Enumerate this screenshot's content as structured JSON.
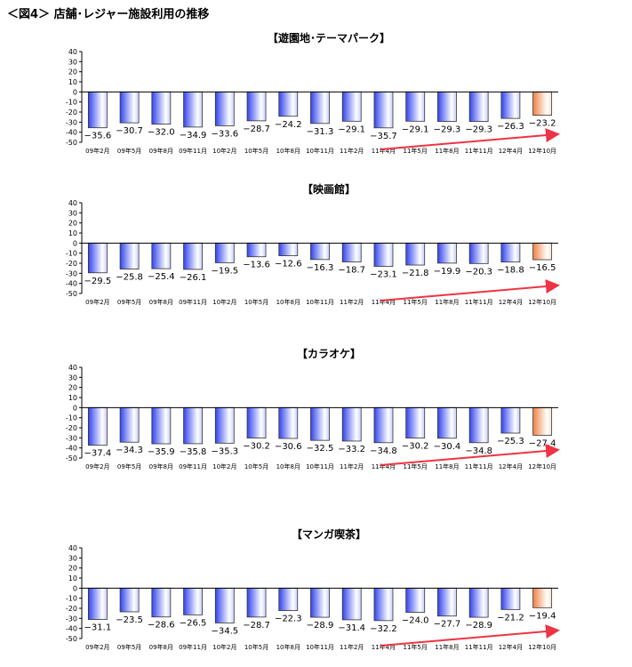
{
  "figure_title": "＜図4＞ 店舗･レジャー施設利用の推移",
  "colors": {
    "bar": "#3344ee",
    "highlight": "#f08040",
    "arrow": "#ee3344"
  },
  "chart_data": [
    {
      "type": "bar",
      "title": "【遊園地･テーマパーク】",
      "ylim": [
        -50,
        40
      ],
      "yticks": [
        40,
        30,
        20,
        10,
        0,
        -10,
        -20,
        -30,
        -40,
        -50
      ],
      "categories": [
        "09年2月",
        "09年5月",
        "09年8月",
        "09年11月",
        "10年2月",
        "10年5月",
        "10年8月",
        "10年11月",
        "11年2月",
        "11年4月",
        "11年5月",
        "11年8月",
        "11年11月",
        "12年4月",
        "12年10月"
      ],
      "values": [
        -35.6,
        -30.7,
        -32.0,
        -34.9,
        -33.6,
        -28.7,
        -24.2,
        -31.3,
        -29.1,
        -35.7,
        -29.1,
        -29.3,
        -29.3,
        -26.3,
        -23.2
      ]
    },
    {
      "type": "bar",
      "title": "【映画館】",
      "ylim": [
        -50,
        40
      ],
      "yticks": [
        40,
        30,
        20,
        10,
        0,
        -10,
        -20,
        -30,
        -40,
        -50
      ],
      "categories": [
        "09年2月",
        "09年5月",
        "09年8月",
        "09年11月",
        "10年2月",
        "10年5月",
        "10年8月",
        "10年11月",
        "11年2月",
        "11年4月",
        "11年5月",
        "11年8月",
        "11年11月",
        "12年4月",
        "12年10月"
      ],
      "values": [
        -29.5,
        -25.8,
        -25.4,
        -26.1,
        -19.5,
        -13.6,
        -12.6,
        -16.3,
        -18.7,
        -23.1,
        -21.8,
        -19.9,
        -20.3,
        -18.8,
        -16.5
      ]
    },
    {
      "type": "bar",
      "title": "【カラオケ】",
      "ylim": [
        -50,
        40
      ],
      "yticks": [
        40,
        30,
        20,
        10,
        0,
        -10,
        -20,
        -30,
        -40,
        -50
      ],
      "categories": [
        "09年2月",
        "09年5月",
        "09年8月",
        "09年11月",
        "10年2月",
        "10年5月",
        "10年8月",
        "10年11月",
        "11年2月",
        "11年4月",
        "11年5月",
        "11年8月",
        "11年11月",
        "12年4月",
        "12年10月"
      ],
      "values": [
        -37.4,
        -34.3,
        -35.9,
        -35.8,
        -35.3,
        -30.2,
        -30.6,
        -32.5,
        -33.2,
        -34.8,
        -30.2,
        -30.4,
        -34.8,
        -25.3,
        -27.4
      ]
    },
    {
      "type": "bar",
      "title": "【マンガ喫茶】",
      "ylim": [
        -50,
        40
      ],
      "yticks": [
        40,
        30,
        20,
        10,
        0,
        -10,
        -20,
        -30,
        -40,
        -50
      ],
      "categories": [
        "09年2月",
        "09年5月",
        "09年8月",
        "09年11月",
        "10年2月",
        "10年5月",
        "10年8月",
        "10年11月",
        "11年2月",
        "11年4月",
        "11年5月",
        "11年8月",
        "11年11月",
        "12年4月",
        "12年10月"
      ],
      "values": [
        -31.1,
        -23.5,
        -28.6,
        -26.5,
        -34.5,
        -28.7,
        -22.3,
        -28.9,
        -31.4,
        -32.2,
        -24.0,
        -27.7,
        -28.9,
        -21.2,
        -19.4
      ]
    }
  ]
}
